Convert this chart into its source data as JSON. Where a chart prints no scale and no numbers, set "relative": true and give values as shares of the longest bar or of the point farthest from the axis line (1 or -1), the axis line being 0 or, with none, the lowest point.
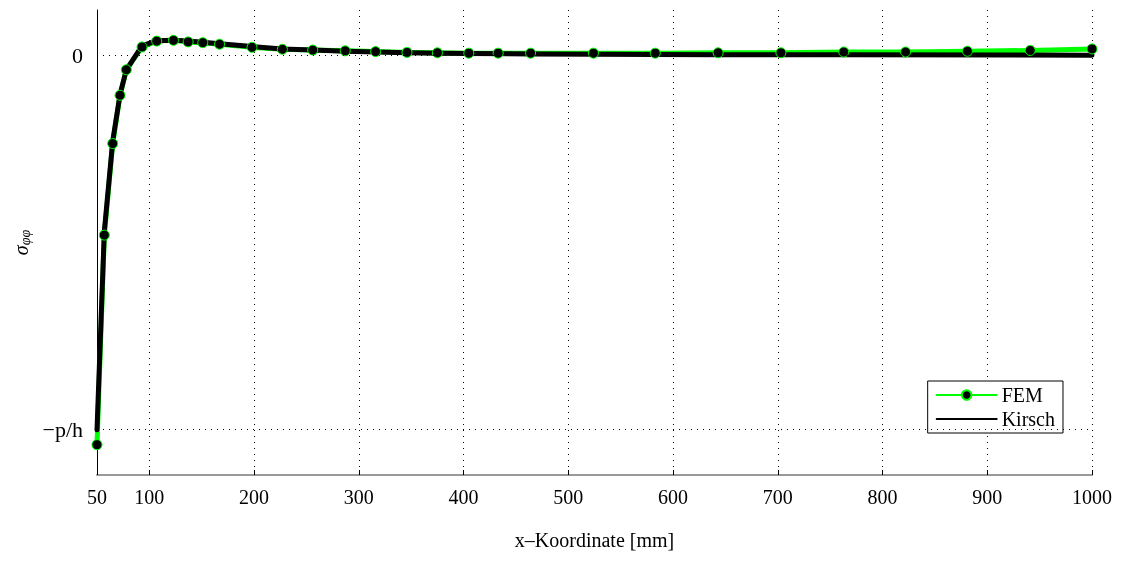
{
  "chart_data": {
    "type": "line",
    "relative": true,
    "xlabel": "x–Koordinate [mm]",
    "ylabel": "σ$_{φφ}$",
    "xlim": [
      50,
      1000
    ],
    "xticks": [
      50,
      100,
      200,
      300,
      400,
      500,
      600,
      700,
      800,
      900,
      1000
    ],
    "grid": "x",
    "legend": "bottom right",
    "ref_lines": [
      {
        "axis": "y",
        "value": 0,
        "label": "0",
        "line_style": "dotted"
      },
      {
        "axis": "y",
        "value": -0.962,
        "label": "−p/h",
        "line_style": "dotted"
      }
    ],
    "series": [
      {
        "name": "FEM",
        "color": "#00ff00",
        "marker": "circle",
        "x": [
          50,
          57,
          65,
          72,
          78,
          93,
          107,
          123,
          137,
          151,
          167,
          198,
          227,
          256,
          287,
          316,
          346,
          375,
          405,
          433,
          464,
          524,
          583,
          643,
          703,
          763,
          822,
          881,
          941,
          1000
        ],
        "values": [
          -1,
          -0.462,
          -0.227,
          -0.103,
          -0.0375,
          0.021,
          0.036,
          0.038,
          0.034,
          0.032,
          0.028,
          0.02,
          0.015,
          0.013,
          0.011,
          0.009,
          0.007,
          0.006,
          0.005,
          0.005,
          0.005,
          0.005,
          0.005,
          0.006,
          0.006,
          0.008,
          0.008,
          0.01,
          0.012,
          0.016
        ]
      },
      {
        "name": "Kirsch",
        "color": "#000000",
        "marker": "none",
        "x": [
          50,
          57,
          65,
          72,
          78,
          93,
          107,
          123,
          137,
          151,
          167,
          198,
          227,
          256,
          287,
          316,
          346,
          375,
          405,
          464,
          524,
          643,
          763,
          1000
        ],
        "values": [
          -0.962,
          -0.452,
          -0.221,
          -0.101,
          -0.038,
          0.024,
          0.037,
          0.038,
          0.036,
          0.033,
          0.029,
          0.022,
          0.016,
          0.013,
          0.01,
          0.008,
          0.006,
          0.005,
          0.004,
          0.003,
          0.002,
          0.001,
          0.001,
          0
        ]
      }
    ]
  }
}
